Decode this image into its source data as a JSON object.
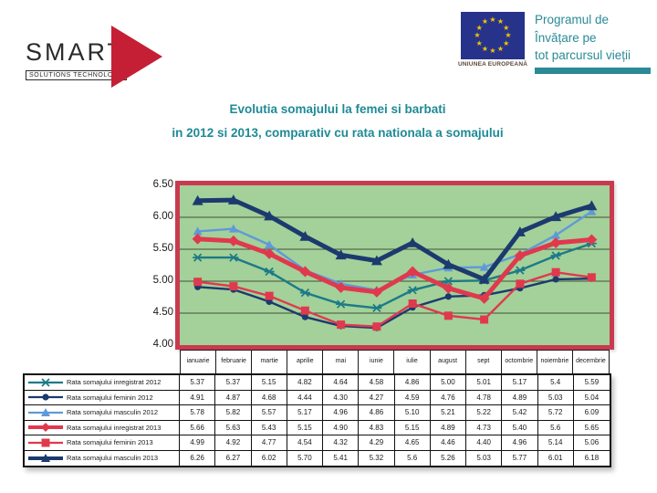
{
  "branding": {
    "smart": {
      "name": "SMART",
      "subtitle": "SOLUTIONS TECHNOLOGY",
      "triangle_color": "#c51f35"
    },
    "eu": {
      "caption": "UNIUNEA EUROPEANĂ",
      "program_lines": [
        "Programul de",
        "Învățare pe",
        "tot parcursul vieții"
      ],
      "flag_color": "#27338b",
      "star_color": "#f2c500",
      "accent_color": "#2a8a96"
    }
  },
  "title": {
    "line1": "Evolutia somajului la femei si barbati",
    "line2": "in 2012 si 2013, comparativ cu rata nationala a somajului",
    "color": "#1e8a96"
  },
  "chart_data": {
    "type": "line",
    "title": "Evolutia somajului la femei si barbati in 2012 si 2013, comparativ cu rata nationala a somajului",
    "xlabel": "",
    "ylabel": "",
    "ylim": [
      4.0,
      6.5
    ],
    "ytick_labels": [
      "6.50",
      "6.00",
      "5.50",
      "5.00",
      "4.50",
      "4.00"
    ],
    "grid": true,
    "legend_position": "data-table-left",
    "plot_bg": "#a3d199",
    "plot_border": "#c93a50",
    "categories": [
      "ianuarie",
      "februarie",
      "martie",
      "aprilie",
      "mai",
      "iunie",
      "iulie",
      "august",
      "sept",
      "octombrie",
      "noiembrie",
      "decembrie"
    ],
    "series": [
      {
        "name": "Rata somajului inregistrat 2012",
        "color": "#1d7a87",
        "marker": "star",
        "thick": false,
        "values": [
          "5.37",
          "5.37",
          "5.15",
          "4.82",
          "4.64",
          "4.58",
          "4.86",
          "5.00",
          "5.01",
          "5.17",
          "5.4",
          "5.59"
        ]
      },
      {
        "name": "Rata somajului feminin 2012",
        "color": "#1c3a6e",
        "marker": "circle",
        "thick": false,
        "values": [
          "4.91",
          "4.87",
          "4.68",
          "4.44",
          "4.30",
          "4.27",
          "4.59",
          "4.76",
          "4.78",
          "4.89",
          "5.03",
          "5.04"
        ]
      },
      {
        "name": "Rata somajului masculin 2012",
        "color": "#5f9ad8",
        "marker": "triangle",
        "thick": false,
        "values": [
          "5.78",
          "5.82",
          "5.57",
          "5.17",
          "4.96",
          "4.86",
          "5.10",
          "5.21",
          "5.22",
          "5.42",
          "5.72",
          "6.09"
        ]
      },
      {
        "name": "Rata somajului inregistrat 2013",
        "color": "#e0394e",
        "marker": "diamond",
        "thick": true,
        "values": [
          "5.66",
          "5.63",
          "5.43",
          "5.15",
          "4.90",
          "4.83",
          "5.15",
          "4.89",
          "4.73",
          "5.40",
          "5.6",
          "5.65"
        ]
      },
      {
        "name": "Rata somajului feminin 2013",
        "color": "#e0394e",
        "marker": "square",
        "thick": false,
        "values": [
          "4.99",
          "4.92",
          "4.77",
          "4.54",
          "4.32",
          "4.29",
          "4.65",
          "4.46",
          "4.40",
          "4.96",
          "5.14",
          "5.06"
        ]
      },
      {
        "name": "Rata somajului masculin 2013",
        "color": "#1c3a6e",
        "marker": "triangle",
        "thick": true,
        "values": [
          "6.26",
          "6.27",
          "6.02",
          "5.70",
          "5.41",
          "5.32",
          "5.6",
          "5.26",
          "5.03",
          "5.77",
          "6.01",
          "6.18"
        ]
      }
    ]
  }
}
